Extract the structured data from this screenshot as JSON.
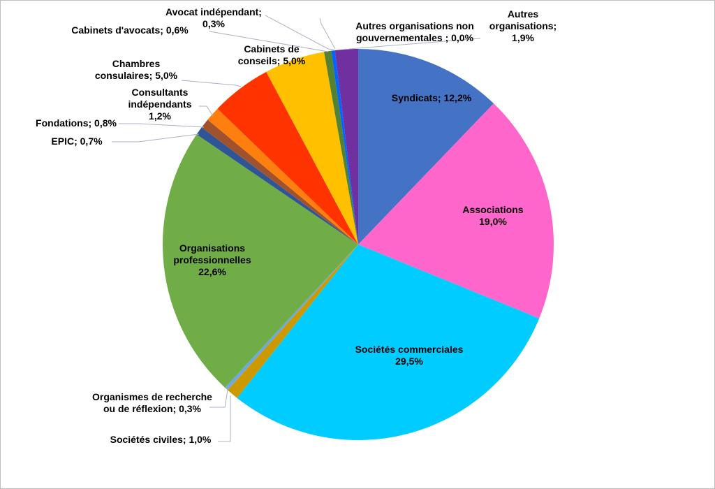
{
  "chart_data": {
    "type": "pie",
    "title": "",
    "slices": [
      {
        "name": "Syndicats",
        "value": 12.2,
        "label_lines": [
          "Syndicats; 12,2%"
        ],
        "color": "#4472c4"
      },
      {
        "name": "Associations",
        "value": 19.0,
        "label_lines": [
          "Associations",
          "19,0%"
        ],
        "color": "#ff66cc"
      },
      {
        "name": "Sociétés commerciales",
        "value": 29.5,
        "label_lines": [
          "Sociétés commerciales",
          "29,5%"
        ],
        "color": "#00ccff"
      },
      {
        "name": "Sociétés civiles",
        "value": 1.0,
        "label_lines": [
          "Sociétés civiles; 1,0%"
        ],
        "color": "#cc9900"
      },
      {
        "name": "Organismes de recherche ou de réflexion",
        "value": 0.3,
        "label_lines": [
          "Organismes de recherche",
          "ou de réflexion; 0,3%"
        ],
        "color": "#6fa8dc"
      },
      {
        "name": "Organisations professionnelles",
        "value": 22.6,
        "label_lines": [
          "Organisations",
          "professionnelles",
          "22,6%"
        ],
        "color": "#70ad47"
      },
      {
        "name": "EPIC",
        "value": 0.7,
        "label_lines": [
          "EPIC; 0,7%"
        ],
        "color": "#2f5597"
      },
      {
        "name": "Fondations",
        "value": 0.8,
        "label_lines": [
          "Fondations; 0,8%"
        ],
        "color": "#a0522d"
      },
      {
        "name": "Consultants indépendants",
        "value": 1.2,
        "label_lines": [
          "Consultants",
          "indépendants",
          "1,2%"
        ],
        "color": "#ff7f0e"
      },
      {
        "name": "Chambres consulaires",
        "value": 5.0,
        "label_lines": [
          "Chambres",
          "consulaires; 5,0%"
        ],
        "color": "#ff3300"
      },
      {
        "name": "Cabinets de conseils",
        "value": 5.0,
        "label_lines": [
          "Cabinets de",
          "conseils; 5,0%"
        ],
        "color": "#ffc000"
      },
      {
        "name": "Cabinets d'avocats",
        "value": 0.6,
        "label_lines": [
          "Cabinets d'avocats; 0,6%"
        ],
        "color": "#548235"
      },
      {
        "name": "Avocat indépendant",
        "value": 0.3,
        "label_lines": [
          "Avocat indépendant;",
          "0,3%"
        ],
        "color": "#0066ff"
      },
      {
        "name": "Autres organisations non gouvernementales",
        "value": 0.0,
        "label_lines": [
          "Autres organisations non",
          "gouvernementales ; 0,0%"
        ],
        "color": "#00b050"
      },
      {
        "name": "Autres organisations",
        "value": 1.9,
        "label_lines": [
          "Autres",
          "organisations;",
          "1,9%"
        ],
        "color": "#7030a0"
      }
    ]
  }
}
